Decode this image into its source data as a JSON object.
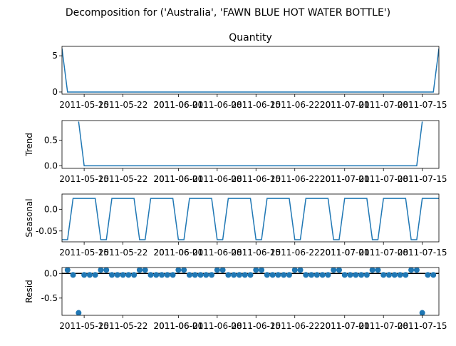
{
  "figure": {
    "suptitle": "Decomposition for ('Australia', 'FAWN BLUE HOT WATER BOTTLE')"
  },
  "chart_data": [
    {
      "type": "line",
      "title": "Quantity",
      "ylabel": "",
      "ylim": [
        -0.3,
        6.3
      ],
      "yticks": [
        0,
        5
      ],
      "x_range": [
        "2011-05-11",
        "2011-07-18"
      ],
      "x_ticks": [
        "2011-05-15",
        "2011-05-22",
        "2011-06-01",
        "2011-06-08",
        "2011-06-15",
        "2011-06-22",
        "2011-07-01",
        "2011-07-08",
        "2011-07-15"
      ],
      "x_tick_labels_overlapped": [
        "2011-05-01",
        "2011-06-01",
        "2011-07-01"
      ],
      "series": [
        {
          "color": "#1f77b4",
          "points": [
            [
              "2011-05-11",
              6
            ],
            [
              "2011-05-12",
              0
            ],
            [
              "2011-07-17",
              0
            ],
            [
              "2011-07-18",
              6
            ]
          ]
        }
      ]
    },
    {
      "type": "line",
      "title": "",
      "ylabel": "Trend",
      "ylim": [
        -0.05,
        0.88
      ],
      "yticks": [
        0.0,
        0.5
      ],
      "x_range": [
        "2011-05-11",
        "2011-07-18"
      ],
      "series": [
        {
          "color": "#1f77b4",
          "points": [
            [
              "2011-05-14",
              0.86
            ],
            [
              "2011-05-15",
              0
            ],
            [
              "2011-07-14",
              0
            ],
            [
              "2011-07-15",
              0.86
            ]
          ]
        }
      ]
    },
    {
      "type": "line",
      "title": "",
      "ylabel": "Seasonal",
      "ylim": [
        -0.075,
        0.035
      ],
      "yticks": [
        0.0,
        -0.05
      ],
      "x_range": [
        "2011-05-11",
        "2011-07-18"
      ],
      "pattern": {
        "high": 0.025,
        "low": -0.07,
        "period_days": 7,
        "high_days": 4
      },
      "series": [
        {
          "color": "#1f77b4",
          "points": []
        }
      ]
    },
    {
      "type": "scatter",
      "title": "",
      "ylabel": "Resid",
      "ylim": [
        -0.85,
        0.12
      ],
      "yticks": [
        0.0,
        -0.5
      ],
      "x_range": [
        "2011-05-11",
        "2011-07-18"
      ],
      "zero_line": true,
      "outliers": [
        [
          "2011-05-14",
          -0.8
        ],
        [
          "2011-07-15",
          -0.8
        ]
      ],
      "series": [
        {
          "color": "#1f77b4",
          "points": []
        }
      ]
    }
  ]
}
